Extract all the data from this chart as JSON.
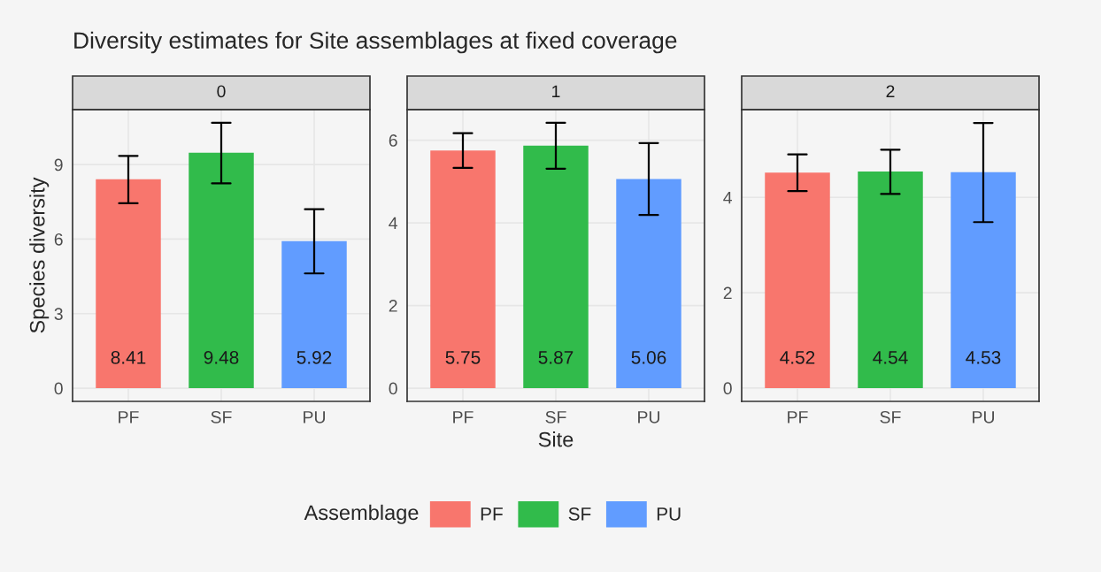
{
  "chart_data": [
    {
      "type": "bar",
      "title": "Diversity estimates for Site assemblages at fixed coverage",
      "subtitle": "0",
      "ylabel": "Species diversity",
      "categories": [
        "PF",
        "SF",
        "PU"
      ],
      "values": [
        8.41,
        9.48,
        5.92
      ],
      "colors": [
        "#f8766d",
        "#31bb4b",
        "#619cff"
      ],
      "errors": [
        [
          7.44,
          9.35
        ],
        [
          8.24,
          10.68
        ],
        [
          4.62,
          7.2
        ]
      ],
      "ylim": [
        -0.53,
        11.21
      ],
      "yticks": [
        0,
        3,
        6,
        9
      ],
      "data_labels": true,
      "grid": true
    },
    {
      "type": "bar",
      "subtitle": "1",
      "xlabel": "Site",
      "categories": [
        "PF",
        "SF",
        "PU"
      ],
      "series": [
        {
          "name": "PF",
          "color": "#f8766d",
          "values": [
            5.75,
            null,
            null
          ],
          "errors": [
            [
              5.33,
              6.17
            ],
            null,
            null
          ]
        },
        {
          "name": "SF",
          "color": "#31bb4b",
          "values": [
            null,
            5.87,
            null
          ],
          "errors": [
            null,
            [
              5.31,
              6.42
            ],
            null
          ]
        },
        {
          "name": "PU",
          "color": "#619cff",
          "values": [
            null,
            null,
            5.06
          ],
          "errors": [
            null,
            null,
            [
              4.19,
              5.93
            ]
          ]
        }
      ],
      "ylim": [
        -0.32,
        6.74
      ],
      "yticks": [
        0,
        2,
        4,
        6
      ],
      "data_labels": true,
      "grid": true,
      "legend": "bottom",
      "legend_title": "Assemblage"
    },
    {
      "type": "bar",
      "subtitle": "2",
      "categories": [
        "PF",
        "SF",
        "PU"
      ],
      "values": [
        4.52,
        4.54,
        4.53
      ],
      "colors": [
        "#f8766d",
        "#31bb4b",
        "#619cff"
      ],
      "errors": [
        [
          4.13,
          4.9
        ],
        [
          4.07,
          5.0
        ],
        [
          3.48,
          5.56
        ]
      ],
      "ylim": [
        -0.28,
        5.84
      ],
      "yticks": [
        0,
        2,
        4
      ],
      "data_labels": true,
      "grid": true
    }
  ]
}
